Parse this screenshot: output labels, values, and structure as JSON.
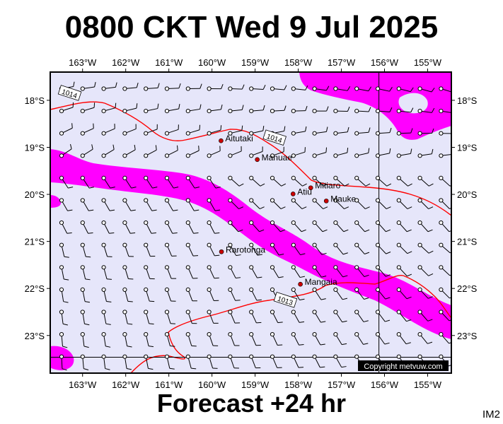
{
  "header": {
    "title": "0800 CKT Wed 9 Jul 2025"
  },
  "footer": {
    "subtitle": "Forecast +24 hr",
    "code": "IM2",
    "copyright": "Copyright metvuw.com"
  },
  "map": {
    "lon_range": [
      -163.75,
      -154.45
    ],
    "lat_range": [
      -23.8,
      -17.4
    ],
    "lon_ticks": [
      "163°W",
      "162°W",
      "161°W",
      "160°W",
      "159°W",
      "158°W",
      "157°W",
      "156°W",
      "155°W"
    ],
    "lat_ticks": [
      "18°S",
      "19°S",
      "20°S",
      "21°S",
      "22°S",
      "23°S"
    ],
    "colors": {
      "ocean": "#e6e6fa",
      "wind_band": "#ff00ff",
      "isobar": "#ff0000",
      "gridline": "#000000"
    },
    "islands": [
      {
        "name": "Aitutaki",
        "lon": -159.79,
        "lat": -18.86
      },
      {
        "name": "Manuae",
        "lon": -158.95,
        "lat": -19.26
      },
      {
        "name": "Atiu",
        "lon": -158.12,
        "lat": -19.99
      },
      {
        "name": "Mitiaro",
        "lon": -157.71,
        "lat": -19.86
      },
      {
        "name": "Mauke",
        "lon": -157.35,
        "lat": -20.14
      },
      {
        "name": "Rarotonga",
        "lon": -159.78,
        "lat": -21.22
      },
      {
        "name": "Mangaia",
        "lon": -157.95,
        "lat": -21.91
      }
    ],
    "isobars": [
      {
        "label": "1014",
        "label_lon": -163.3,
        "label_lat": -17.85
      },
      {
        "label": "1014",
        "label_lon": -158.55,
        "label_lat": -18.8
      },
      {
        "label": "1013",
        "label_lon": -158.3,
        "label_lat": -22.25
      }
    ]
  }
}
